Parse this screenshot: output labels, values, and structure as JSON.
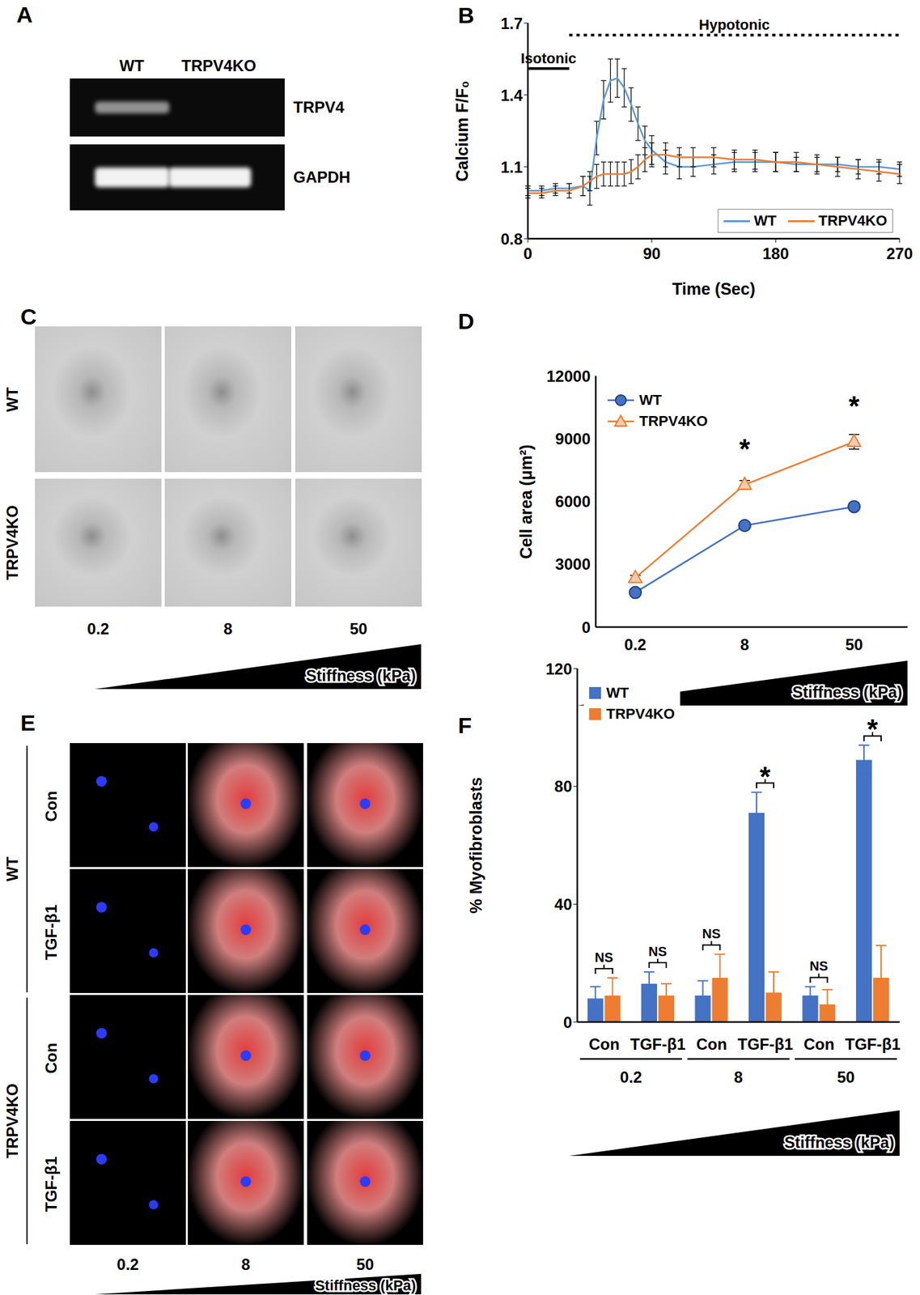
{
  "panels": {
    "A": {
      "panel": "A",
      "columns": [
        "WT",
        "TRPV4KO"
      ],
      "rows": [
        "TRPV4",
        "GAPDH"
      ]
    },
    "C": {
      "panel": "C",
      "rows": [
        "WT",
        "TRPV4KO"
      ],
      "columns": [
        "0.2",
        "8",
        "50"
      ],
      "axis_label": "Stiffness (kPa)"
    },
    "E": {
      "panel": "E",
      "groups": [
        {
          "label": "WT",
          "rows": [
            "Con",
            "TGF-β1"
          ]
        },
        {
          "label": "TRPV4KO",
          "rows": [
            "Con",
            "TGF-β1"
          ]
        }
      ],
      "columns": [
        "0.2",
        "8",
        "50"
      ],
      "axis_label": "Stiffness (kPa)"
    }
  },
  "chart_data": [
    {
      "panel": "B",
      "type": "line",
      "x_label": "Time (Sec)",
      "y_label": "Calcium F/F₀",
      "x": [
        0,
        10,
        20,
        30,
        40,
        45,
        50,
        55,
        60,
        65,
        70,
        75,
        80,
        85,
        90,
        100,
        110,
        120,
        135,
        150,
        165,
        180,
        195,
        210,
        225,
        240,
        255,
        270
      ],
      "series": [
        {
          "name": "WT",
          "color": "#5b9bd5",
          "values": [
            1,
            1,
            1.01,
            1.01,
            1.02,
            1,
            1.22,
            1.38,
            1.46,
            1.47,
            1.43,
            1.36,
            1.28,
            1.21,
            1.17,
            1.12,
            1.1,
            1.1,
            1.11,
            1.12,
            1.12,
            1.12,
            1.11,
            1.11,
            1.11,
            1.1,
            1.1,
            1.09
          ],
          "errors": [
            0.02,
            0.02,
            0.02,
            0.02,
            0.04,
            0.06,
            0.07,
            0.08,
            0.09,
            0.08,
            0.08,
            0.07,
            0.07,
            0.06,
            0.06,
            0.05,
            0.05,
            0.04,
            0.04,
            0.04,
            0.04,
            0.04,
            0.03,
            0.03,
            0.03,
            0.03,
            0.03,
            0.03
          ]
        },
        {
          "name": "TRPV4KO",
          "color": "#ed7d31",
          "values": [
            0.99,
            0.99,
            1,
            1,
            1.02,
            1.04,
            1.06,
            1.07,
            1.07,
            1.07,
            1.07,
            1.08,
            1.1,
            1.13,
            1.15,
            1.15,
            1.14,
            1.14,
            1.14,
            1.13,
            1.13,
            1.12,
            1.12,
            1.11,
            1.1,
            1.09,
            1.08,
            1.07
          ],
          "errors": [
            0.02,
            0.02,
            0.02,
            0.03,
            0.04,
            0.04,
            0.05,
            0.05,
            0.05,
            0.05,
            0.05,
            0.05,
            0.05,
            0.05,
            0.05,
            0.05,
            0.04,
            0.04,
            0.04,
            0.04,
            0.04,
            0.04,
            0.04,
            0.04,
            0.04,
            0.04,
            0.04,
            0.04
          ]
        }
      ],
      "xlim": [
        0,
        270
      ],
      "xticks": [
        0,
        90,
        180,
        270
      ],
      "ylim": [
        0.8,
        1.7
      ],
      "yticks": [
        0.8,
        1.1,
        1.4,
        1.7
      ],
      "legend": "lower right",
      "annotations": [
        {
          "text": "Isotonic",
          "x": [
            0,
            30
          ],
          "y": 1.51,
          "line_style": "solid"
        },
        {
          "text": "Hypotonic",
          "x": [
            30,
            270
          ],
          "y": 1.65,
          "line_style": "dotted"
        }
      ]
    },
    {
      "panel": "D",
      "type": "line",
      "x_label": "Stiffness (kPa)",
      "y_label": "Cell area (μm²)",
      "categories": [
        "0.2",
        "8",
        "50"
      ],
      "series": [
        {
          "name": "WT",
          "color": "#4472c4",
          "marker": "circle",
          "values": [
            1650,
            4850,
            5750
          ],
          "errors": [
            80,
            100,
            120
          ]
        },
        {
          "name": "TRPV4KO",
          "color": "#ed7d31",
          "marker": "triangle",
          "values": [
            2350,
            6800,
            8850
          ],
          "errors": [
            120,
            200,
            350
          ]
        }
      ],
      "ylim": [
        0,
        12000
      ],
      "yticks": [
        0,
        3000,
        6000,
        9000,
        12000
      ],
      "legend": "upper left",
      "annotations": [
        {
          "text": "*",
          "x": "8"
        },
        {
          "text": "*",
          "x": "50"
        }
      ]
    },
    {
      "panel": "F",
      "type": "bar",
      "x_label": "Stiffness (kPa)",
      "y_label": "% Myofibroblasts",
      "categories": [
        "Con",
        "TGF-β1",
        "Con",
        "TGF-β1",
        "Con",
        "TGF-β1"
      ],
      "group_labels": [
        "0.2",
        "8",
        "50"
      ],
      "series": [
        {
          "name": "WT",
          "color": "#4472c4",
          "values": [
            8,
            13,
            9,
            71,
            9,
            89
          ],
          "errors": [
            4,
            4,
            5,
            7,
            3,
            5
          ]
        },
        {
          "name": "TRPV4KO",
          "color": "#ed7d31",
          "values": [
            9,
            9,
            15,
            10,
            6,
            15
          ],
          "errors": [
            6,
            4,
            8,
            7,
            5,
            11
          ]
        }
      ],
      "ylim": [
        0,
        120
      ],
      "yticks": [
        0,
        40,
        80,
        120
      ],
      "legend": "upper left",
      "comparisons": [
        "NS",
        "NS",
        "NS",
        "*",
        "NS",
        "*"
      ]
    }
  ]
}
